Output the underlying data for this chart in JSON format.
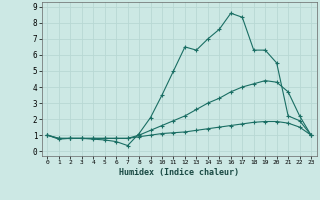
{
  "xlabel": "Humidex (Indice chaleur)",
  "bg_color": "#cce8e4",
  "grid_color": "#b8d8d4",
  "line_color": "#1a6e64",
  "xlim": [
    -0.5,
    23.5
  ],
  "ylim": [
    -0.3,
    9.3
  ],
  "xticks": [
    0,
    1,
    2,
    3,
    4,
    5,
    6,
    7,
    8,
    9,
    10,
    11,
    12,
    13,
    14,
    15,
    16,
    17,
    18,
    19,
    20,
    21,
    22,
    23
  ],
  "yticks": [
    0,
    1,
    2,
    3,
    4,
    5,
    6,
    7,
    8,
    9
  ],
  "line1_x": [
    0,
    1,
    2,
    3,
    4,
    5,
    6,
    7,
    8,
    9,
    10,
    11,
    12,
    13,
    14,
    15,
    16,
    17,
    18,
    19,
    20,
    21,
    22,
    23
  ],
  "line1_y": [
    1.0,
    0.75,
    0.8,
    0.8,
    0.75,
    0.7,
    0.6,
    0.35,
    1.1,
    2.1,
    3.5,
    5.0,
    6.5,
    6.3,
    7.0,
    7.6,
    8.6,
    8.35,
    6.3,
    6.3,
    5.5,
    2.2,
    1.9,
    1.0
  ],
  "line2_x": [
    0,
    1,
    2,
    3,
    4,
    5,
    6,
    7,
    8,
    9,
    10,
    11,
    12,
    13,
    14,
    15,
    16,
    17,
    18,
    19,
    20,
    21,
    22,
    23
  ],
  "line2_y": [
    1.0,
    0.8,
    0.8,
    0.8,
    0.8,
    0.8,
    0.8,
    0.8,
    1.0,
    1.3,
    1.6,
    1.9,
    2.2,
    2.6,
    3.0,
    3.3,
    3.7,
    4.0,
    4.2,
    4.4,
    4.3,
    3.7,
    2.2,
    1.0
  ],
  "line3_x": [
    0,
    1,
    2,
    3,
    4,
    5,
    6,
    7,
    8,
    9,
    10,
    11,
    12,
    13,
    14,
    15,
    16,
    17,
    18,
    19,
    20,
    21,
    22,
    23
  ],
  "line3_y": [
    1.0,
    0.8,
    0.8,
    0.8,
    0.8,
    0.8,
    0.8,
    0.8,
    0.9,
    1.0,
    1.1,
    1.15,
    1.2,
    1.3,
    1.4,
    1.5,
    1.6,
    1.7,
    1.8,
    1.85,
    1.85,
    1.75,
    1.5,
    1.0
  ]
}
